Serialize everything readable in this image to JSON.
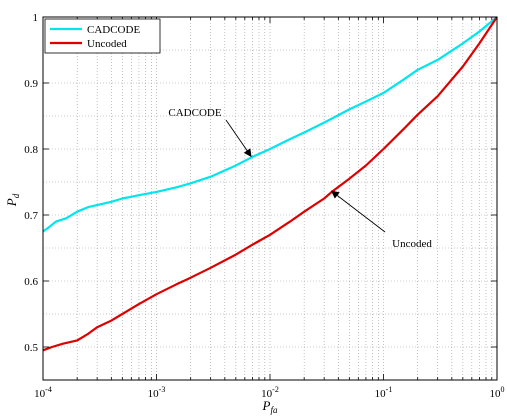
{
  "chart_data": {
    "type": "line",
    "xscale": "log",
    "xlim": [
      0.0001,
      1
    ],
    "ylim": [
      0.45,
      1.0
    ],
    "xlabel": {
      "main": "P",
      "sub": "fa"
    },
    "ylabel": {
      "main": "P",
      "sub": "d"
    },
    "grid": true,
    "legend_position": "top-left",
    "x_ticks": [
      {
        "value": 0.0001,
        "base": "10",
        "exp": "-4"
      },
      {
        "value": 0.001,
        "base": "10",
        "exp": "-3"
      },
      {
        "value": 0.01,
        "base": "10",
        "exp": "-2"
      },
      {
        "value": 0.1,
        "base": "10",
        "exp": "-1"
      },
      {
        "value": 1,
        "base": "10",
        "exp": "0"
      }
    ],
    "y_ticks": [
      {
        "value": 0.5,
        "label": "0.5"
      },
      {
        "value": 0.6,
        "label": "0.6"
      },
      {
        "value": 0.7,
        "label": "0.7"
      },
      {
        "value": 0.8,
        "label": "0.8"
      },
      {
        "value": 0.9,
        "label": "0.9"
      },
      {
        "value": 1.0,
        "label": "1"
      }
    ],
    "series": [
      {
        "name": "CADCODE",
        "color": "#00e5ee",
        "x": [
          0.0001,
          0.00011,
          0.00013,
          0.00016,
          0.0002,
          0.00025,
          0.0003,
          0.0004,
          0.0005,
          0.0007,
          0.001,
          0.0015,
          0.002,
          0.003,
          0.005,
          0.007,
          0.01,
          0.015,
          0.02,
          0.03,
          0.05,
          0.07,
          0.1,
          0.15,
          0.2,
          0.3,
          0.5,
          0.7,
          1.0
        ],
        "y": [
          0.675,
          0.68,
          0.69,
          0.695,
          0.705,
          0.712,
          0.715,
          0.72,
          0.725,
          0.73,
          0.735,
          0.742,
          0.748,
          0.758,
          0.775,
          0.788,
          0.8,
          0.815,
          0.825,
          0.84,
          0.86,
          0.872,
          0.885,
          0.905,
          0.92,
          0.935,
          0.96,
          0.978,
          1.0
        ]
      },
      {
        "name": "Uncoded",
        "color": "#dd0000",
        "x": [
          0.0001,
          0.00012,
          0.00015,
          0.0002,
          0.00025,
          0.0003,
          0.0004,
          0.0005,
          0.0007,
          0.001,
          0.0015,
          0.002,
          0.003,
          0.005,
          0.007,
          0.01,
          0.015,
          0.02,
          0.03,
          0.035,
          0.05,
          0.07,
          0.1,
          0.15,
          0.2,
          0.3,
          0.5,
          0.7,
          1.0
        ],
        "y": [
          0.495,
          0.5,
          0.505,
          0.51,
          0.52,
          0.53,
          0.54,
          0.55,
          0.565,
          0.58,
          0.595,
          0.605,
          0.62,
          0.64,
          0.655,
          0.67,
          0.69,
          0.705,
          0.725,
          0.735,
          0.755,
          0.775,
          0.8,
          0.83,
          0.852,
          0.88,
          0.925,
          0.96,
          1.0
        ]
      }
    ],
    "annotations": [
      {
        "text": "CADCODE",
        "arrow_to": {
          "x": 0.0068,
          "y": 0.789
        }
      },
      {
        "text": "Uncoded",
        "arrow_to": {
          "x": 0.035,
          "y": 0.736
        }
      }
    ]
  }
}
